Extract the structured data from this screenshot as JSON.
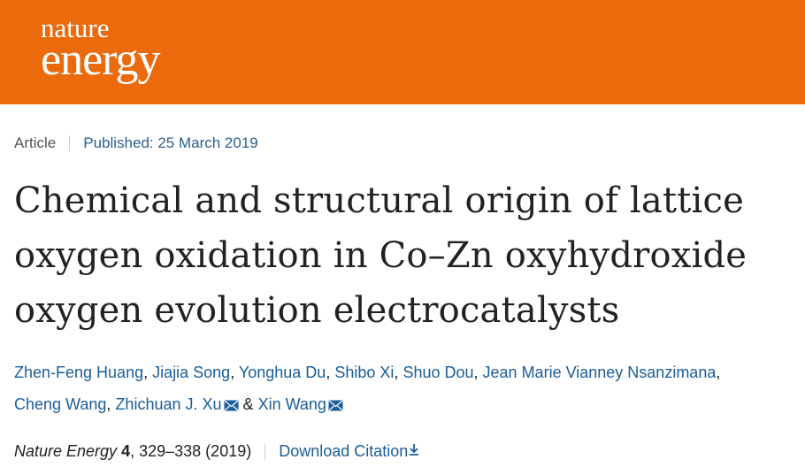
{
  "header": {
    "logo_line1": "nature",
    "logo_line2": "energy"
  },
  "article": {
    "type": "Article",
    "published": "Published: 25 March 2019",
    "title_lines": [
      "Chemical and structural origin of lattice",
      "oxygen oxidation in Co–Zn oxyhydroxide",
      "oxygen evolution electrocatalysts"
    ],
    "authors": [
      {
        "name": "Zhen-Feng Huang",
        "corresponding": false
      },
      {
        "name": "Jiajia Song",
        "corresponding": false
      },
      {
        "name": "Yonghua Du",
        "corresponding": false
      },
      {
        "name": "Shibo Xi",
        "corresponding": false
      },
      {
        "name": "Shuo Dou",
        "corresponding": false
      },
      {
        "name": "Jean Marie Vianney Nsanzimana",
        "corresponding": false
      },
      {
        "name": "Cheng Wang",
        "corresponding": false
      },
      {
        "name": "Zhichuan J. Xu",
        "corresponding": true
      },
      {
        "name": "Xin Wang",
        "corresponding": true
      }
    ],
    "author_separator": ",",
    "last_separator": "&",
    "citation": {
      "journal": "Nature Energy",
      "volume": "4",
      "pages": "329–338 (2019)",
      "download": "Download Citation"
    }
  }
}
